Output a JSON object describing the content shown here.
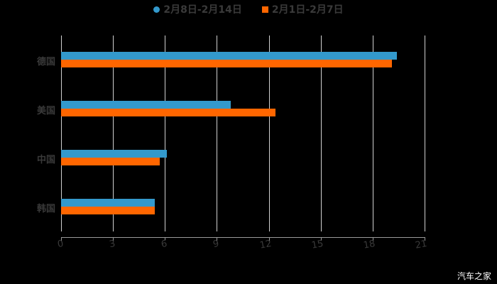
{
  "chart_data": {
    "type": "bar",
    "orientation": "horizontal",
    "title": "",
    "xlabel": "",
    "ylabel": "",
    "categories": [
      "德国",
      "美国",
      "中国",
      "韩国"
    ],
    "series": [
      {
        "name": "2月8日-2月14日",
        "color": "#3399cc",
        "values": [
          19.4,
          9.8,
          6.1,
          5.4
        ]
      },
      {
        "name": "2月1日-2月7日",
        "color": "#ff6600",
        "values": [
          19.1,
          12.4,
          5.7,
          5.4
        ]
      }
    ],
    "xlim": [
      0,
      21
    ],
    "xticks": [
      "0",
      "3",
      "6",
      "9",
      "12",
      "15",
      "18",
      "21"
    ],
    "grid": true,
    "legend_position": "top"
  },
  "legend": [
    {
      "label": "2月8日-2月14日",
      "color": "#3399cc",
      "shape": "circle"
    },
    {
      "label": "2月1日-2月7日",
      "color": "#ff6600",
      "shape": "square"
    }
  ],
  "watermark": "汽车之家"
}
